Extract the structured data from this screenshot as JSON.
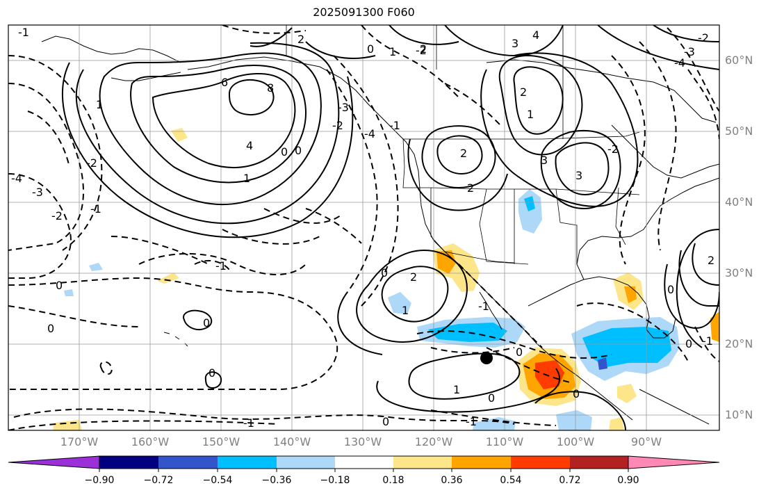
{
  "title": "2025091300 F060",
  "latitude_labels": [
    "60°N",
    "50°N",
    "40°N",
    "30°N",
    "20°N",
    "10°N"
  ],
  "longitude_labels": [
    "170°W",
    "160°W",
    "150°W",
    "140°W",
    "130°W",
    "120°W",
    "110°W",
    "100°W",
    "90°W"
  ],
  "colorbar": {
    "labels": [
      "−0.90",
      "−0.72",
      "−0.54",
      "−0.36",
      "−0.18",
      "0.18",
      "0.36",
      "0.54",
      "0.72",
      "0.90"
    ],
    "colors": [
      "#9b30d9",
      "#000080",
      "#3355cc",
      "#00bfff",
      "#add8f8",
      "#ffffff",
      "#fde68a",
      "#ffa500",
      "#ff3c00",
      "#b22222",
      "#ff88b4"
    ]
  },
  "contour_labels": {
    "solid": [
      "6",
      "8",
      "4",
      "1",
      "2",
      "2",
      "1",
      "2",
      "3",
      "3",
      "2",
      "1",
      "0",
      "0",
      "0",
      "2",
      "1",
      "0",
      "1",
      "0",
      "0",
      "0",
      "1",
      "2",
      "4",
      "3",
      "2",
      "0",
      "0"
    ],
    "dashed": [
      "-1",
      "-2",
      "-3",
      "-4",
      "-2",
      "-1",
      "0",
      "0",
      "-1",
      "-2",
      "-1",
      "-2",
      "-1",
      "-3",
      "-4",
      "-2",
      "0",
      "-1",
      "0",
      "-1",
      "0",
      "-1",
      "-2",
      "-3",
      "-4"
    ]
  },
  "marker": "station-dot"
}
